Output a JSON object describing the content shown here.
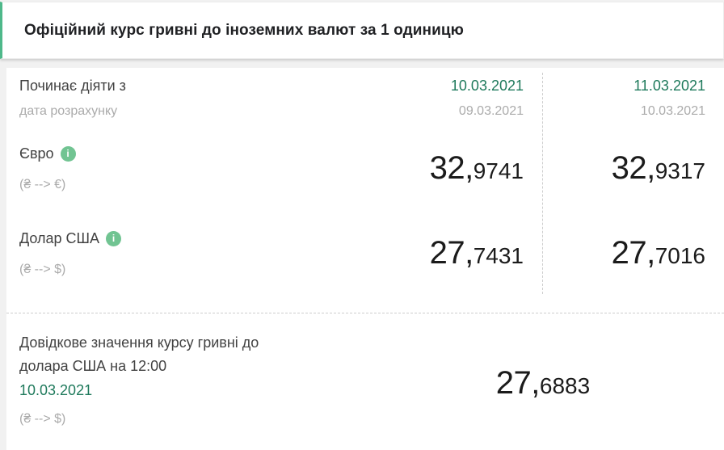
{
  "colors": {
    "accent_green": "#1f7a5c",
    "border_green": "#4eb88a",
    "info_green": "#71c492"
  },
  "header": {
    "title": "Офіційний курс гривні до іноземних валют за 1 одиницю"
  },
  "table": {
    "effective_label": "Починає діяти з",
    "effective_sublabel": "дата розрахунку",
    "columns": [
      {
        "effective_date": "10.03.2021",
        "calculation_date": "09.03.2021"
      },
      {
        "effective_date": "11.03.2021",
        "calculation_date": "10.03.2021"
      }
    ],
    "rows": [
      {
        "currency": "Євро",
        "pair": "(₴ --> €)",
        "values": [
          {
            "int": "32,",
            "frac": "9741"
          },
          {
            "int": "32,",
            "frac": "9317"
          }
        ]
      },
      {
        "currency": "Долар США",
        "pair": "(₴ --> $)",
        "values": [
          {
            "int": "27,",
            "frac": "7431"
          },
          {
            "int": "27,",
            "frac": "7016"
          }
        ]
      }
    ]
  },
  "reference": {
    "label": "Довідкове значення курсу гривні до долара США на 12:00",
    "date": "10.03.2021",
    "pair": "(₴ --> $)",
    "value": {
      "int": "27,",
      "frac": "6883"
    }
  },
  "icons": {
    "info_glyph": "i"
  }
}
